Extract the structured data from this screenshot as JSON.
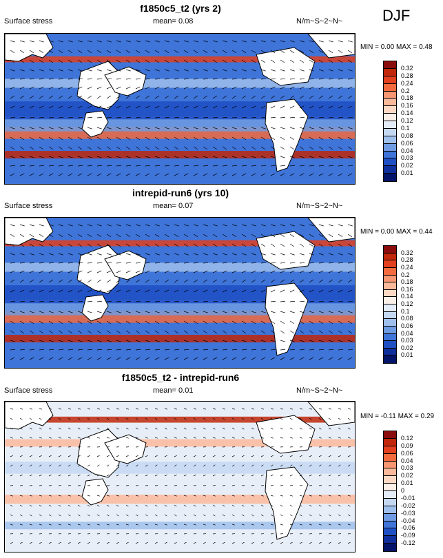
{
  "season": "DJF",
  "panels": [
    {
      "title": "f1850c5_t2 (yrs 2)",
      "field": "Surface stress",
      "mean_label": "mean=",
      "mean": "0.08",
      "units": "N/m~S~2~N~",
      "min_label": "MIN =",
      "min": "0.00",
      "max_label": "MAX =",
      "max": "0.48",
      "levels": [
        "0.32",
        "0.28",
        "0.24",
        "0.2",
        "0.18",
        "0.16",
        "0.14",
        "0.12",
        "0.1",
        "0.08",
        "0.06",
        "0.04",
        "0.03",
        "0.02",
        "0.01"
      ],
      "colors": [
        "#8a0c0c",
        "#c0270b",
        "#e2401e",
        "#f26a3e",
        "#f79672",
        "#fbb99b",
        "#fdd8c4",
        "#fbf0e8",
        "#e3ecf8",
        "#c4d8f2",
        "#9fc0ec",
        "#6e9be2",
        "#3f74d8",
        "#1f4fc4",
        "#0e2f9c",
        "#041468"
      ]
    },
    {
      "title": "intrepid-run6 (yrs 10)",
      "field": "Surface stress",
      "mean_label": "mean=",
      "mean": "0.07",
      "units": "N/m~S~2~N~",
      "min_label": "MIN =",
      "min": "0.00",
      "max_label": "MAX =",
      "max": "0.44",
      "levels": [
        "0.32",
        "0.28",
        "0.24",
        "0.2",
        "0.18",
        "0.16",
        "0.14",
        "0.12",
        "0.1",
        "0.08",
        "0.06",
        "0.04",
        "0.03",
        "0.02",
        "0.01"
      ],
      "colors": [
        "#8a0c0c",
        "#c0270b",
        "#e2401e",
        "#f26a3e",
        "#f79672",
        "#fbb99b",
        "#fdd8c4",
        "#fbf0e8",
        "#e3ecf8",
        "#c4d8f2",
        "#9fc0ec",
        "#6e9be2",
        "#3f74d8",
        "#1f4fc4",
        "#0e2f9c",
        "#041468"
      ]
    },
    {
      "title": "f1850c5_t2 - intrepid-run6",
      "field": "Surface stress",
      "mean_label": "mean=",
      "mean": "0.01",
      "units": "N/m~S~2~N~",
      "min_label": "MIN =",
      "min": "-0.11",
      "max_label": "MAX =",
      "max": "0.29",
      "levels": [
        "0.12",
        "0.09",
        "0.06",
        "0.04",
        "0.03",
        "0.02",
        "0.01",
        "0",
        "-0.01",
        "-0.02",
        "-0.03",
        "-0.04",
        "-0.06",
        "-0.09",
        "-0.12"
      ],
      "colors": [
        "#8a0c0c",
        "#c0270b",
        "#e2401e",
        "#f26a3e",
        "#f79672",
        "#fbb99b",
        "#fdd8c4",
        "#fbf0e8",
        "#e3ecf8",
        "#c4d8f2",
        "#9fc0ec",
        "#6e9be2",
        "#3f74d8",
        "#1f4fc4",
        "#0e2f9c",
        "#041468"
      ]
    }
  ]
}
